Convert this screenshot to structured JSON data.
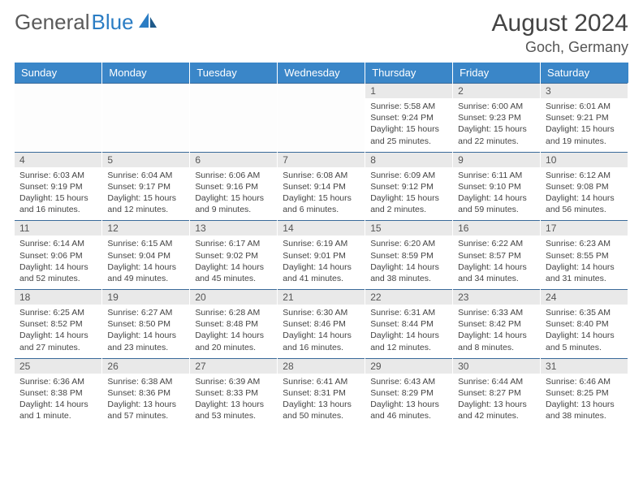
{
  "brand": {
    "part1": "General",
    "part2": "Blue"
  },
  "title": "August 2024",
  "location": "Goch, Germany",
  "colors": {
    "header_bg": "#3a86c8",
    "header_text": "#ffffff",
    "daynum_bg": "#e9e9e9",
    "row_divider": "#3a6a9a",
    "body_text": "#444444",
    "brand_gray": "#5a5a5a",
    "brand_blue": "#2b7dc4"
  },
  "weekdays": [
    "Sunday",
    "Monday",
    "Tuesday",
    "Wednesday",
    "Thursday",
    "Friday",
    "Saturday"
  ],
  "start_weekday_index": 4,
  "days": [
    {
      "n": 1,
      "sunrise": "5:58 AM",
      "sunset": "9:24 PM",
      "daylight": "15 hours and 25 minutes."
    },
    {
      "n": 2,
      "sunrise": "6:00 AM",
      "sunset": "9:23 PM",
      "daylight": "15 hours and 22 minutes."
    },
    {
      "n": 3,
      "sunrise": "6:01 AM",
      "sunset": "9:21 PM",
      "daylight": "15 hours and 19 minutes."
    },
    {
      "n": 4,
      "sunrise": "6:03 AM",
      "sunset": "9:19 PM",
      "daylight": "15 hours and 16 minutes."
    },
    {
      "n": 5,
      "sunrise": "6:04 AM",
      "sunset": "9:17 PM",
      "daylight": "15 hours and 12 minutes."
    },
    {
      "n": 6,
      "sunrise": "6:06 AM",
      "sunset": "9:16 PM",
      "daylight": "15 hours and 9 minutes."
    },
    {
      "n": 7,
      "sunrise": "6:08 AM",
      "sunset": "9:14 PM",
      "daylight": "15 hours and 6 minutes."
    },
    {
      "n": 8,
      "sunrise": "6:09 AM",
      "sunset": "9:12 PM",
      "daylight": "15 hours and 2 minutes."
    },
    {
      "n": 9,
      "sunrise": "6:11 AM",
      "sunset": "9:10 PM",
      "daylight": "14 hours and 59 minutes."
    },
    {
      "n": 10,
      "sunrise": "6:12 AM",
      "sunset": "9:08 PM",
      "daylight": "14 hours and 56 minutes."
    },
    {
      "n": 11,
      "sunrise": "6:14 AM",
      "sunset": "9:06 PM",
      "daylight": "14 hours and 52 minutes."
    },
    {
      "n": 12,
      "sunrise": "6:15 AM",
      "sunset": "9:04 PM",
      "daylight": "14 hours and 49 minutes."
    },
    {
      "n": 13,
      "sunrise": "6:17 AM",
      "sunset": "9:02 PM",
      "daylight": "14 hours and 45 minutes."
    },
    {
      "n": 14,
      "sunrise": "6:19 AM",
      "sunset": "9:01 PM",
      "daylight": "14 hours and 41 minutes."
    },
    {
      "n": 15,
      "sunrise": "6:20 AM",
      "sunset": "8:59 PM",
      "daylight": "14 hours and 38 minutes."
    },
    {
      "n": 16,
      "sunrise": "6:22 AM",
      "sunset": "8:57 PM",
      "daylight": "14 hours and 34 minutes."
    },
    {
      "n": 17,
      "sunrise": "6:23 AM",
      "sunset": "8:55 PM",
      "daylight": "14 hours and 31 minutes."
    },
    {
      "n": 18,
      "sunrise": "6:25 AM",
      "sunset": "8:52 PM",
      "daylight": "14 hours and 27 minutes."
    },
    {
      "n": 19,
      "sunrise": "6:27 AM",
      "sunset": "8:50 PM",
      "daylight": "14 hours and 23 minutes."
    },
    {
      "n": 20,
      "sunrise": "6:28 AM",
      "sunset": "8:48 PM",
      "daylight": "14 hours and 20 minutes."
    },
    {
      "n": 21,
      "sunrise": "6:30 AM",
      "sunset": "8:46 PM",
      "daylight": "14 hours and 16 minutes."
    },
    {
      "n": 22,
      "sunrise": "6:31 AM",
      "sunset": "8:44 PM",
      "daylight": "14 hours and 12 minutes."
    },
    {
      "n": 23,
      "sunrise": "6:33 AM",
      "sunset": "8:42 PM",
      "daylight": "14 hours and 8 minutes."
    },
    {
      "n": 24,
      "sunrise": "6:35 AM",
      "sunset": "8:40 PM",
      "daylight": "14 hours and 5 minutes."
    },
    {
      "n": 25,
      "sunrise": "6:36 AM",
      "sunset": "8:38 PM",
      "daylight": "14 hours and 1 minute."
    },
    {
      "n": 26,
      "sunrise": "6:38 AM",
      "sunset": "8:36 PM",
      "daylight": "13 hours and 57 minutes."
    },
    {
      "n": 27,
      "sunrise": "6:39 AM",
      "sunset": "8:33 PM",
      "daylight": "13 hours and 53 minutes."
    },
    {
      "n": 28,
      "sunrise": "6:41 AM",
      "sunset": "8:31 PM",
      "daylight": "13 hours and 50 minutes."
    },
    {
      "n": 29,
      "sunrise": "6:43 AM",
      "sunset": "8:29 PM",
      "daylight": "13 hours and 46 minutes."
    },
    {
      "n": 30,
      "sunrise": "6:44 AM",
      "sunset": "8:27 PM",
      "daylight": "13 hours and 42 minutes."
    },
    {
      "n": 31,
      "sunrise": "6:46 AM",
      "sunset": "8:25 PM",
      "daylight": "13 hours and 38 minutes."
    }
  ],
  "labels": {
    "sunrise": "Sunrise:",
    "sunset": "Sunset:",
    "daylight": "Daylight:"
  }
}
